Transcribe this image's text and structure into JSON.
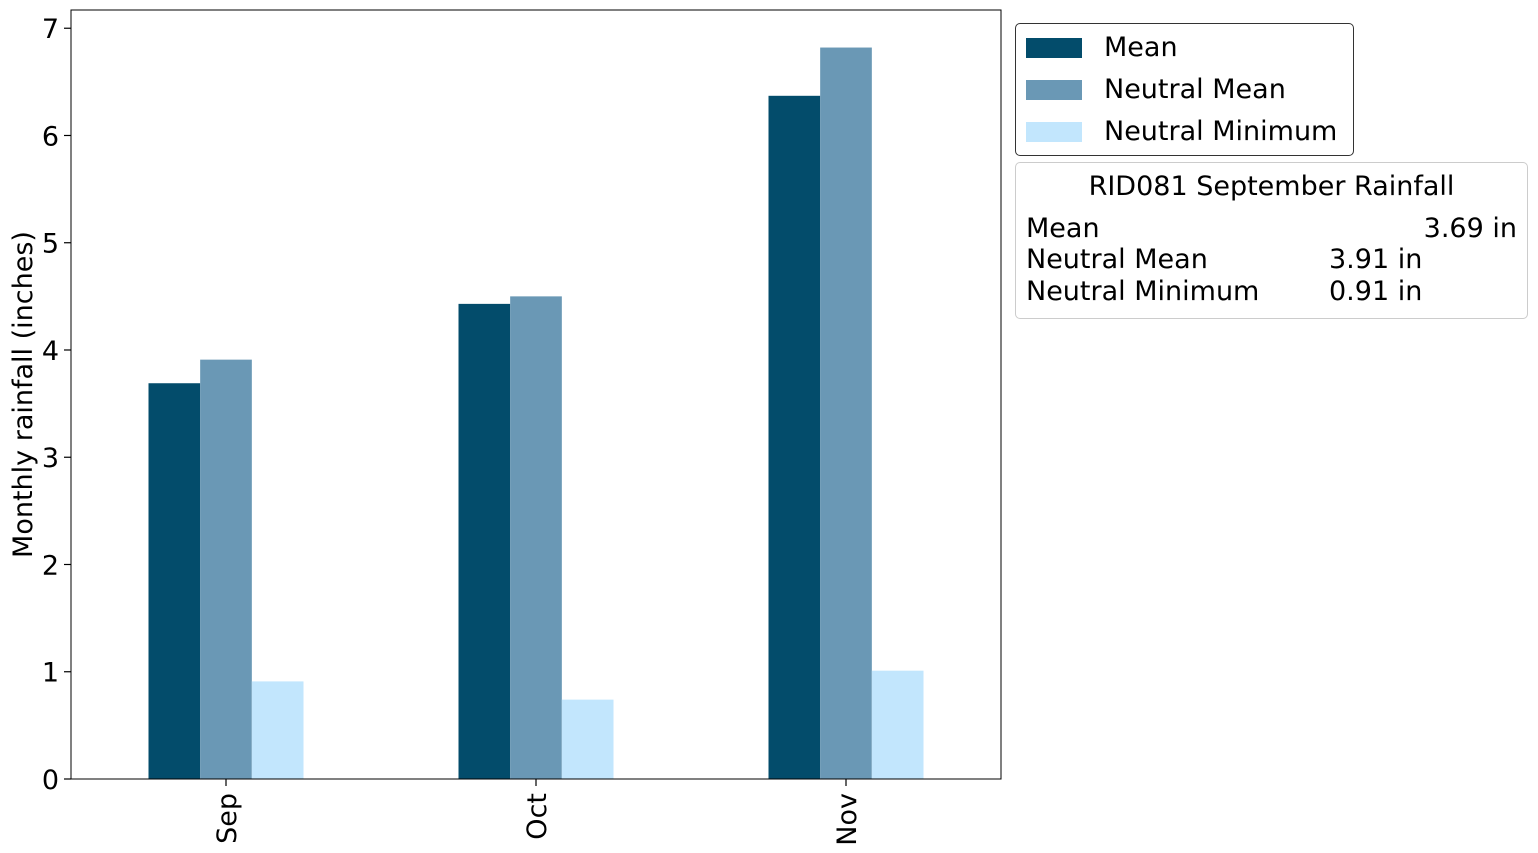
{
  "chart_data": {
    "type": "bar",
    "title": "",
    "xlabel": "",
    "ylabel": "Monthly rainfall (inches)",
    "categories": [
      "Sep",
      "Oct",
      "Nov"
    ],
    "ylim": [
      0,
      7.17
    ],
    "yticks": [
      "0",
      "1",
      "2",
      "3",
      "4",
      "5",
      "6",
      "7"
    ],
    "grid": false,
    "legend_position": "outside-right-top",
    "series": [
      {
        "name": "Mean",
        "color": "#034c6b",
        "values": [
          3.69,
          4.43,
          6.37
        ]
      },
      {
        "name": "Neutral Mean",
        "color": "#6a98b5",
        "values": [
          3.91,
          4.5,
          6.82
        ]
      },
      {
        "name": "Neutral Minimum",
        "color": "#c2e6fd",
        "values": [
          0.91,
          0.74,
          1.01
        ]
      }
    ]
  },
  "info_box": {
    "title": "RID081 September Rainfall",
    "rows": [
      {
        "label": "Mean",
        "value": "3.69 in"
      },
      {
        "label": "Neutral Mean",
        "value": "3.91 in"
      },
      {
        "label": "Neutral Minimum",
        "value": "0.91 in"
      }
    ]
  }
}
